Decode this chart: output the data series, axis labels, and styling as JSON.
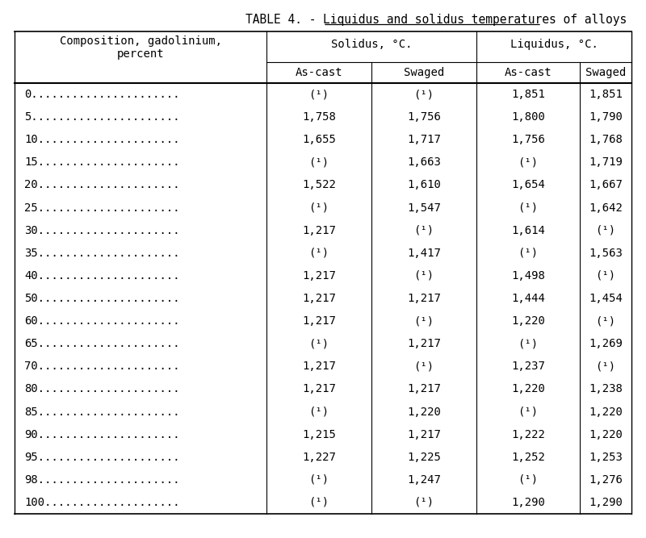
{
  "title_prefix": "TABLE 4. - ",
  "title_underlined": "Liquidus and solidus temperatures of alloys",
  "col_headers_row1": [
    "Composition, gadolinium,",
    "Solidus, °C.",
    "Liquidus, °C."
  ],
  "col_headers_row2": [
    "percent",
    "As-cast",
    "Swaged",
    "As-cast",
    "Swaged"
  ],
  "rows": [
    [
      "0",
      "(¹)",
      "(¹)",
      "1,851",
      "1,851"
    ],
    [
      "5",
      "1,758",
      "1,756",
      "1,800",
      "1,790"
    ],
    [
      "10",
      "1,655",
      "1,717",
      "1,756",
      "1,768"
    ],
    [
      "15",
      "(¹)",
      "1,663",
      "(¹)",
      "1,719"
    ],
    [
      "20",
      "1,522",
      "1,610",
      "1,654",
      "1,667"
    ],
    [
      "25",
      "(¹)",
      "1,547",
      "(¹)",
      "1,642"
    ],
    [
      "30",
      "1,217",
      "(¹)",
      "1,614",
      "(¹)"
    ],
    [
      "35",
      "(¹)",
      "1,417",
      "(¹)",
      "1,563"
    ],
    [
      "40",
      "1,217",
      "(¹)",
      "1,498",
      "(¹)"
    ],
    [
      "50",
      "1,217",
      "1,217",
      "1,444",
      "1,454"
    ],
    [
      "60",
      "1,217",
      "(¹)",
      "1,220",
      "(¹)"
    ],
    [
      "65",
      "(¹)",
      "1,217",
      "(¹)",
      "1,269"
    ],
    [
      "70",
      "1,217",
      "(¹)",
      "1,237",
      "(¹)"
    ],
    [
      "80",
      "1,217",
      "1,217",
      "1,220",
      "1,238"
    ],
    [
      "85",
      "(¹)",
      "1,220",
      "(¹)",
      "1,220"
    ],
    [
      "90",
      "1,215",
      "1,217",
      "1,222",
      "1,220"
    ],
    [
      "95",
      "1,227",
      "1,225",
      "1,252",
      "1,253"
    ],
    [
      "98",
      "(¹)",
      "1,247",
      "(¹)",
      "1,276"
    ],
    [
      "100",
      "(¹)",
      "(¹)",
      "1,290",
      "1,290"
    ]
  ],
  "dots_by_comp": {
    "0": "......................",
    "5": "......................",
    "10": ".....................",
    "15": ".....................",
    "20": ".....................",
    "25": ".....................",
    "30": ".....................",
    "35": ".....................",
    "40": ".....................",
    "50": ".....................",
    "60": ".....................",
    "65": ".....................",
    "70": ".....................",
    "80": ".....................",
    "85": ".....................",
    "90": ".....................",
    "95": ".....................",
    "98": ".....................",
    "100": "...................."
  },
  "bg_color": "#ffffff",
  "text_color": "#000000",
  "title_fontsize": 10.5,
  "header_fontsize": 10,
  "cell_fontsize": 10
}
